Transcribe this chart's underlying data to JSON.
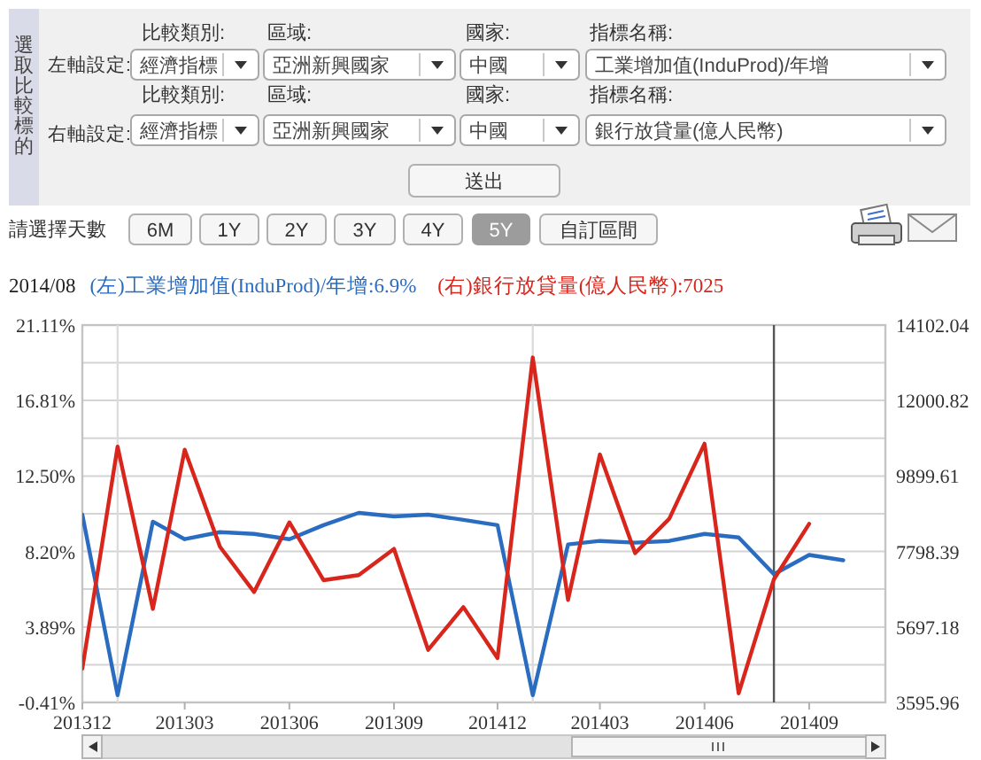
{
  "chart_data": {
    "type": "line",
    "title": "2014/08",
    "legend": "top left",
    "grid": "y",
    "x": [
      "2012-12",
      "2013-01",
      "2013-02",
      "2013-03",
      "2013-04",
      "2013-05",
      "2013-06",
      "2013-07",
      "2013-08",
      "2013-09",
      "2013-10",
      "2013-11",
      "2013-12",
      "2014-01",
      "2014-02",
      "2014-03",
      "2014-04",
      "2014-05",
      "2014-06",
      "2014-07",
      "2014-08",
      "2014-09",
      "2014-10"
    ],
    "xlim": [
      "2012-12",
      "2014-11-07"
    ],
    "xticks": [
      {
        "value": "2012-12",
        "label": "201312"
      },
      {
        "value": "2013-03",
        "label": "201303"
      },
      {
        "value": "2013-06",
        "label": "201306"
      },
      {
        "value": "2013-09",
        "label": "201309"
      },
      {
        "value": "2013-12",
        "label": "201412"
      },
      {
        "value": "2014-03",
        "label": "201403"
      },
      {
        "value": "2014-06",
        "label": "201406"
      },
      {
        "value": "2014-09",
        "label": "201409"
      }
    ],
    "ylim": [
      -0.41,
      21.11
    ],
    "yticks": [
      {
        "value": -0.41,
        "label": "-0.41%"
      },
      {
        "value": 1.74,
        "label": null
      },
      {
        "value": 3.89,
        "label": "3.89%"
      },
      {
        "value": 6.05,
        "label": null
      },
      {
        "value": 8.2,
        "label": "8.20%"
      },
      {
        "value": 10.35,
        "label": null
      },
      {
        "value": 12.5,
        "label": "12.50%"
      },
      {
        "value": 14.66,
        "label": null
      },
      {
        "value": 16.81,
        "label": "16.81%"
      },
      {
        "value": 18.96,
        "label": null
      },
      {
        "value": 21.11,
        "label": "21.11%"
      }
    ],
    "y2lim": [
      3595.96,
      14102.04
    ],
    "y2ticks": [
      3595.96,
      5697.18,
      7798.39,
      9899.61,
      12000.82,
      14102.04
    ],
    "series": [
      {
        "name": "(左)工業增加值(InduProd)/年增:6.9%",
        "color": "#2a6cc0",
        "values": [
          10.3,
          0,
          9.9,
          8.9,
          9.3,
          9.2,
          8.9,
          9.7,
          10.4,
          10.2,
          10.3,
          10.0,
          9.7,
          0,
          8.6,
          8.8,
          8.7,
          8.8,
          9.2,
          9.0,
          6.9,
          8.0,
          7.7
        ]
      },
      {
        "name": "(右)銀行放貸量(億人民幣):7025",
        "color": "#d9261c",
        "axis": "y2",
        "values": [
          4540,
          10720,
          6200,
          10630,
          7930,
          6670,
          8610,
          7000,
          7140,
          7870,
          5060,
          6250,
          4830,
          13200,
          6450,
          10500,
          7750,
          8710,
          10800,
          3850,
          7025,
          8570,
          null
        ]
      }
    ],
    "ref_lines": [
      {
        "axis": "x",
        "value": "2013-01",
        "color": "#dcdcdc"
      },
      {
        "axis": "x",
        "value": "2014-01",
        "color": "#dcdcdc"
      },
      {
        "axis": "x",
        "value": "2014-08",
        "color": "#555555"
      }
    ],
    "annotations": [
      "選取比較標的",
      "左軸設定:",
      "比較類別:",
      "經濟指標",
      "區域:",
      "亞洲新興國家",
      "國家:",
      "中國",
      "指標名稱:",
      "工業增加值(InduProd)/年增",
      "右軸設定:",
      "比較類別:",
      "經濟指標",
      "區域:",
      "亞洲新興國家",
      "國家:",
      "中國",
      "指標名稱:",
      "銀行放貸量(億人民幣)",
      "送出",
      "請選擇天數",
      "6M",
      "1Y",
      "2Y",
      "3Y",
      "4Y",
      "5Y",
      "自訂區間"
    ]
  }
}
